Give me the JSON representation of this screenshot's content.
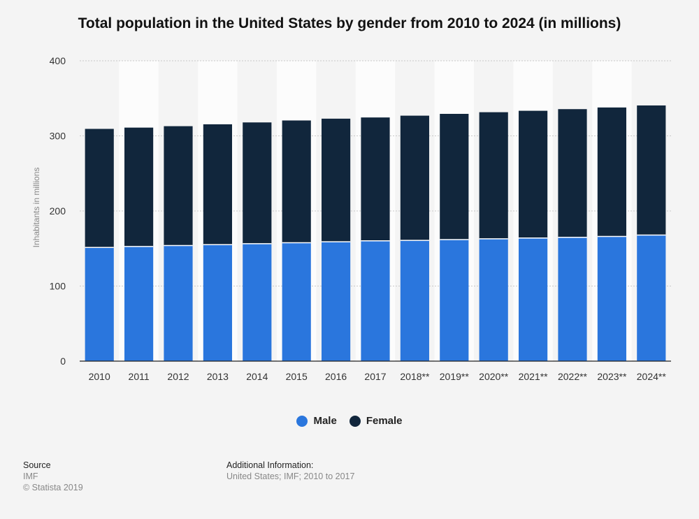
{
  "title": "Total population in the United States by gender from 2010 to 2024 (in millions)",
  "colors": {
    "male": "#2a76dd",
    "female": "#11263c",
    "grid": "#c8c8c8",
    "band": "#fcfcfc"
  },
  "chart_data": {
    "type": "bar",
    "stacked": true,
    "categories": [
      "2010",
      "2011",
      "2012",
      "2013",
      "2014",
      "2015",
      "2016",
      "2017",
      "2018**",
      "2019**",
      "2020**",
      "2021**",
      "2022**",
      "2023**",
      "2024**"
    ],
    "series": [
      {
        "name": "Male",
        "values": [
          151.4,
          152.7,
          153.9,
          155.1,
          156.4,
          157.7,
          159.0,
          160.2,
          160.8,
          161.9,
          162.9,
          163.9,
          164.9,
          166.0,
          167.9
        ]
      },
      {
        "name": "Female",
        "values": [
          157.9,
          158.3,
          159.0,
          160.3,
          161.5,
          162.8,
          163.9,
          164.3,
          166.1,
          167.4,
          168.6,
          169.5,
          170.7,
          171.8,
          172.6
        ]
      }
    ],
    "ylabel": "Inhabitants in millions",
    "xlabel": "",
    "ylim": [
      0,
      400
    ],
    "yticks": [
      0,
      100,
      200,
      300,
      400
    ],
    "grid": true,
    "legend_position": "bottom"
  },
  "legend": [
    {
      "label": "Male"
    },
    {
      "label": "Female"
    }
  ],
  "footer": {
    "source_heading": "Source",
    "source_text": "IMF",
    "copyright": "© Statista 2019",
    "info_heading": "Additional Information:",
    "info_text": "United States; IMF; 2010 to 2017"
  }
}
